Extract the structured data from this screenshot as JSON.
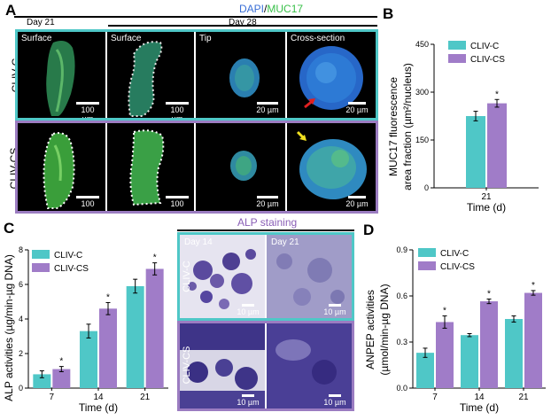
{
  "panelA": {
    "letter": "A",
    "title_dapi": "DAPI",
    "title_sep": "/",
    "title_muc": "MUC17",
    "day21": "Day 21",
    "day28": "Day 28",
    "rows": [
      "CLIV-C",
      "CLIV-CS"
    ],
    "cols": [
      "Surface",
      "Surface",
      "Tip",
      "Cross-section"
    ],
    "scales": [
      "100 µm",
      "100 µm",
      "20 µm",
      "20 µm",
      "100 µm",
      "100 µm",
      "20 µm",
      "20 µm"
    ]
  },
  "panelB": {
    "letter": "B",
    "legend": [
      "CLIV-C",
      "CLIV-CS"
    ],
    "ylabel_line1": "MUC17 fluorescence",
    "ylabel_line2": "area fraction (µm²/nucleus)",
    "xlabel": "Time (d)",
    "star": "*"
  },
  "panelC": {
    "letter": "C",
    "legend": [
      "CLIV-C",
      "CLIV-CS"
    ],
    "ylabel": "ALP activities (µg/min-µg DNA)",
    "xlabel": "Time (d)",
    "star": "*"
  },
  "alp": {
    "title": "ALP staining",
    "days": [
      "Day 14",
      "Day 21"
    ],
    "rows": [
      "CLIV-C",
      "CLIV-CS"
    ],
    "scale": "10 µm"
  },
  "panelD": {
    "letter": "D",
    "legend": [
      "CLIV-C",
      "CLIV-CS"
    ],
    "ylabel_line1": "ANPEP activities",
    "ylabel_line2": "(µmol/min-µg DNA)",
    "xlabel": "Time (d)",
    "star": "*"
  },
  "colors": {
    "c": "#4fc7c7",
    "cs": "#a07cc8"
  },
  "chart_data": [
    {
      "type": "bar",
      "categories": [
        "21"
      ],
      "series": [
        {
          "name": "CLIV-C",
          "values": [
            225
          ],
          "errors": [
            15
          ]
        },
        {
          "name": "CLIV-CS",
          "values": [
            265
          ],
          "errors": [
            12
          ]
        }
      ],
      "significant": [
        true
      ],
      "ylim": [
        0,
        450
      ],
      "yticks": [
        0,
        150,
        300,
        450
      ]
    },
    {
      "type": "bar",
      "categories": [
        "7",
        "14",
        "21"
      ],
      "series": [
        {
          "name": "CLIV-C",
          "values": [
            0.8,
            3.3,
            5.9
          ],
          "errors": [
            0.2,
            0.4,
            0.4
          ]
        },
        {
          "name": "CLIV-CS",
          "values": [
            1.1,
            4.6,
            6.9
          ],
          "errors": [
            0.15,
            0.35,
            0.35
          ]
        }
      ],
      "significant": [
        true,
        true,
        true
      ],
      "ylim": [
        0,
        8
      ],
      "yticks": [
        0,
        2,
        4,
        6,
        8
      ]
    },
    {
      "type": "bar",
      "categories": [
        "7",
        "14",
        "21"
      ],
      "series": [
        {
          "name": "CLIV-C",
          "values": [
            0.23,
            0.345,
            0.45
          ],
          "errors": [
            0.03,
            0.01,
            0.02
          ]
        },
        {
          "name": "CLIV-CS",
          "values": [
            0.43,
            0.565,
            0.62
          ],
          "errors": [
            0.04,
            0.015,
            0.015
          ]
        }
      ],
      "significant": [
        true,
        true,
        true
      ],
      "ylim": [
        0,
        0.9
      ],
      "yticks": [
        0.0,
        0.3,
        0.6,
        0.9
      ]
    }
  ]
}
